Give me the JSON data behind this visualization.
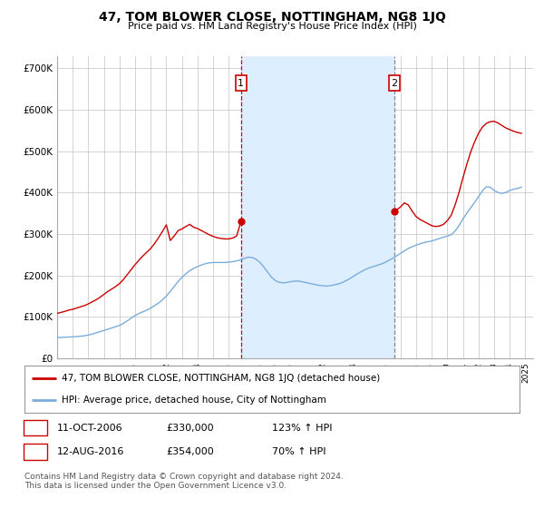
{
  "title": "47, TOM BLOWER CLOSE, NOTTINGHAM, NG8 1JQ",
  "subtitle": "Price paid vs. HM Land Registry's House Price Index (HPI)",
  "ylabel_ticks": [
    "£0",
    "£100K",
    "£200K",
    "£300K",
    "£400K",
    "£500K",
    "£600K",
    "£700K"
  ],
  "ylim": [
    0,
    730000
  ],
  "xlim_start": 1995.0,
  "xlim_end": 2025.5,
  "red_color": "#cc0000",
  "blue_color": "#7aaddb",
  "vline1_color": "#cc0000",
  "vline2_color": "#888888",
  "shade_color": "#ddeeff",
  "grid_color": "#cccccc",
  "background_color": "#ffffff",
  "legend_label_red": "47, TOM BLOWER CLOSE, NOTTINGHAM, NG8 1JQ (detached house)",
  "legend_label_blue": "HPI: Average price, detached house, City of Nottingham",
  "point1_label": "1",
  "point1_date": "11-OCT-2006",
  "point1_price": "£330,000",
  "point1_hpi": "123% ↑ HPI",
  "point1_x": 2006.78,
  "point1_y": 330000,
  "point2_label": "2",
  "point2_date": "12-AUG-2016",
  "point2_price": "£354,000",
  "point2_hpi": "70% ↑ HPI",
  "point2_x": 2016.62,
  "point2_y": 354000,
  "footer": "Contains HM Land Registry data © Crown copyright and database right 2024.\nThis data is licensed under the Open Government Licence v3.0.",
  "hpi_data_x": [
    1995.0,
    1995.25,
    1995.5,
    1995.75,
    1996.0,
    1996.25,
    1996.5,
    1996.75,
    1997.0,
    1997.25,
    1997.5,
    1997.75,
    1998.0,
    1998.25,
    1998.5,
    1998.75,
    1999.0,
    1999.25,
    1999.5,
    1999.75,
    2000.0,
    2000.25,
    2000.5,
    2000.75,
    2001.0,
    2001.25,
    2001.5,
    2001.75,
    2002.0,
    2002.25,
    2002.5,
    2002.75,
    2003.0,
    2003.25,
    2003.5,
    2003.75,
    2004.0,
    2004.25,
    2004.5,
    2004.75,
    2005.0,
    2005.25,
    2005.5,
    2005.75,
    2006.0,
    2006.25,
    2006.5,
    2006.75,
    2007.0,
    2007.25,
    2007.5,
    2007.75,
    2008.0,
    2008.25,
    2008.5,
    2008.75,
    2009.0,
    2009.25,
    2009.5,
    2009.75,
    2010.0,
    2010.25,
    2010.5,
    2010.75,
    2011.0,
    2011.25,
    2011.5,
    2011.75,
    2012.0,
    2012.25,
    2012.5,
    2012.75,
    2013.0,
    2013.25,
    2013.5,
    2013.75,
    2014.0,
    2014.25,
    2014.5,
    2014.75,
    2015.0,
    2015.25,
    2015.5,
    2015.75,
    2016.0,
    2016.25,
    2016.5,
    2016.75,
    2017.0,
    2017.25,
    2017.5,
    2017.75,
    2018.0,
    2018.25,
    2018.5,
    2018.75,
    2019.0,
    2019.25,
    2019.5,
    2019.75,
    2020.0,
    2020.25,
    2020.5,
    2020.75,
    2021.0,
    2021.25,
    2021.5,
    2021.75,
    2022.0,
    2022.25,
    2022.5,
    2022.75,
    2023.0,
    2023.25,
    2023.5,
    2023.75,
    2024.0,
    2024.25,
    2024.5,
    2024.75
  ],
  "hpi_data_y": [
    50000,
    50000,
    50500,
    51000,
    51500,
    52000,
    53000,
    54000,
    56000,
    58000,
    61000,
    64000,
    67000,
    70000,
    73000,
    76000,
    79000,
    84000,
    90000,
    97000,
    103000,
    108000,
    112000,
    116000,
    121000,
    127000,
    133000,
    141000,
    150000,
    161000,
    173000,
    185000,
    195000,
    204000,
    211000,
    217000,
    221000,
    225000,
    228000,
    230000,
    231000,
    231000,
    231000,
    231000,
    232000,
    233000,
    235000,
    237000,
    241000,
    244000,
    243000,
    239000,
    231000,
    220000,
    207000,
    195000,
    187000,
    183000,
    182000,
    183000,
    185000,
    186000,
    186000,
    184000,
    182000,
    180000,
    178000,
    176000,
    175000,
    174000,
    175000,
    177000,
    179000,
    182000,
    187000,
    192000,
    198000,
    204000,
    209000,
    214000,
    218000,
    221000,
    224000,
    227000,
    231000,
    236000,
    241000,
    247000,
    253000,
    259000,
    265000,
    269000,
    273000,
    276000,
    279000,
    281000,
    283000,
    286000,
    289000,
    292000,
    295000,
    298000,
    307000,
    320000,
    336000,
    350000,
    363000,
    376000,
    390000,
    404000,
    414000,
    413000,
    405000,
    400000,
    398000,
    400000,
    405000,
    408000,
    410000,
    413000
  ],
  "price_data_x": [
    1995.0,
    1995.2,
    1995.5,
    1995.75,
    1996.0,
    1996.25,
    1996.5,
    1996.75,
    1997.0,
    1997.25,
    1997.5,
    1997.75,
    1998.0,
    1998.25,
    1998.5,
    1998.75,
    1999.0,
    1999.25,
    1999.5,
    1999.75,
    2000.0,
    2000.25,
    2000.5,
    2000.75,
    2001.0,
    2001.25,
    2001.5,
    2001.75,
    2002.0,
    2002.25,
    2002.5,
    2002.75,
    2003.0,
    2003.25,
    2003.5,
    2003.75,
    2004.0,
    2004.25,
    2004.5,
    2004.75,
    2005.0,
    2005.25,
    2005.5,
    2005.75,
    2006.0,
    2006.25,
    2006.5,
    2006.78,
    2016.62,
    2016.75,
    2017.0,
    2017.25,
    2017.5,
    2017.75,
    2018.0,
    2018.25,
    2018.5,
    2018.75,
    2019.0,
    2019.25,
    2019.5,
    2019.75,
    2020.0,
    2020.25,
    2020.5,
    2020.75,
    2021.0,
    2021.25,
    2021.5,
    2021.75,
    2022.0,
    2022.25,
    2022.5,
    2022.75,
    2023.0,
    2023.25,
    2023.5,
    2023.75,
    2024.0,
    2024.25,
    2024.5,
    2024.75
  ],
  "price_data_y": [
    108000,
    110000,
    113000,
    116000,
    118000,
    121000,
    124000,
    127000,
    131000,
    136000,
    141000,
    147000,
    154000,
    161000,
    167000,
    173000,
    180000,
    190000,
    202000,
    214000,
    226000,
    237000,
    247000,
    256000,
    265000,
    277000,
    291000,
    306000,
    322000,
    284000,
    295000,
    308000,
    312000,
    318000,
    323000,
    316000,
    313000,
    308000,
    303000,
    298000,
    294000,
    291000,
    289000,
    288000,
    288000,
    290000,
    295000,
    330000,
    354000,
    358000,
    365000,
    375000,
    370000,
    355000,
    342000,
    335000,
    330000,
    325000,
    320000,
    318000,
    319000,
    323000,
    332000,
    345000,
    370000,
    400000,
    435000,
    468000,
    498000,
    522000,
    543000,
    558000,
    567000,
    571000,
    572000,
    568000,
    562000,
    556000,
    552000,
    548000,
    545000,
    543000
  ]
}
